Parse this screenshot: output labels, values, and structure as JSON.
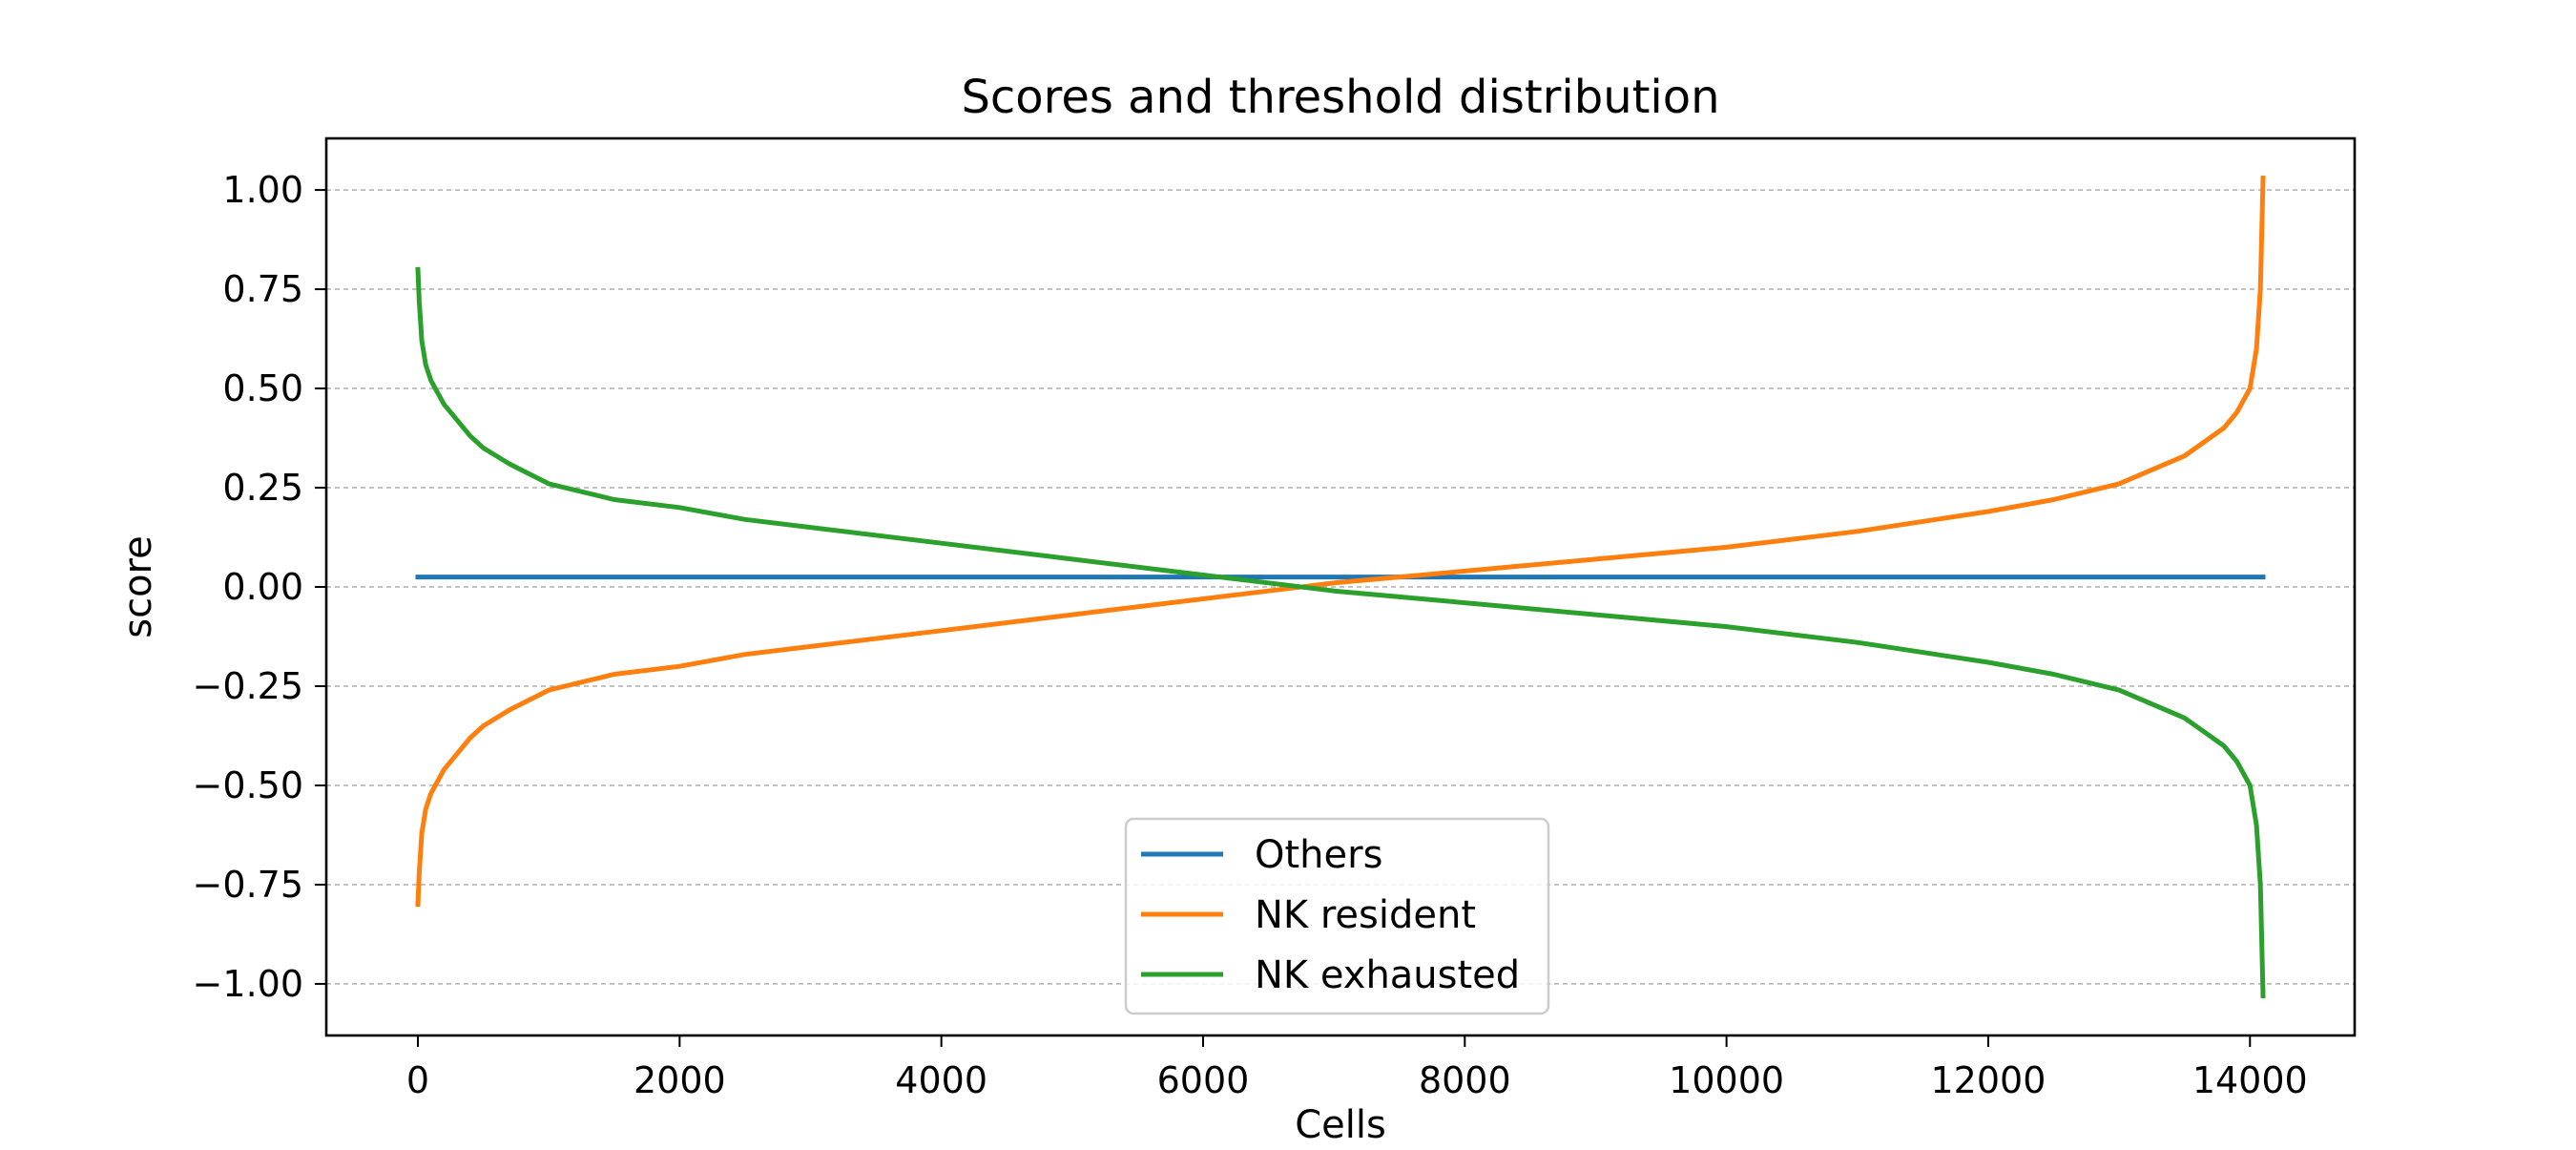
{
  "chart_data": {
    "type": "line",
    "title": "Scores and threshold distribution",
    "xlabel": "Cells",
    "ylabel": "score",
    "xlim": [
      -700,
      14800
    ],
    "ylim": [
      -1.13,
      1.13
    ],
    "x_ticks": [
      0,
      2000,
      4000,
      6000,
      8000,
      10000,
      12000,
      14000
    ],
    "x_tick_labels": [
      "0",
      "2000",
      "4000",
      "6000",
      "8000",
      "10000",
      "12000",
      "14000"
    ],
    "y_ticks": [
      1.0,
      0.75,
      0.5,
      0.25,
      0.0,
      -0.25,
      -0.5,
      -0.75,
      -1.0
    ],
    "y_tick_labels": [
      "1.00",
      "0.75",
      "0.50",
      "0.25",
      "0.00",
      "−0.25",
      "−0.50",
      "−0.75",
      "−1.00"
    ],
    "grid": "horizontal dashed",
    "legend_position": "lower-center",
    "series": [
      {
        "name": "Others",
        "color": "#1f77b4",
        "x": [
          0,
          14100
        ],
        "y": [
          0.025,
          0.025
        ]
      },
      {
        "name": "NK resident",
        "color": "#ff7f0e",
        "x": [
          0,
          10,
          30,
          60,
          100,
          200,
          300,
          400,
          500,
          700,
          1000,
          1500,
          2000,
          2500,
          3000,
          4000,
          5000,
          6000,
          6500,
          7000,
          7500,
          8000,
          9000,
          10000,
          11000,
          12000,
          12500,
          13000,
          13500,
          13800,
          13900,
          14000,
          14050,
          14080,
          14100
        ],
        "y": [
          -0.8,
          -0.72,
          -0.62,
          -0.56,
          -0.52,
          -0.46,
          -0.42,
          -0.38,
          -0.35,
          -0.31,
          -0.26,
          -0.22,
          -0.2,
          -0.17,
          -0.15,
          -0.11,
          -0.07,
          -0.03,
          -0.01,
          0.01,
          0.025,
          0.04,
          0.07,
          0.1,
          0.14,
          0.19,
          0.22,
          0.26,
          0.33,
          0.4,
          0.44,
          0.5,
          0.6,
          0.75,
          1.03
        ]
      },
      {
        "name": "NK exhausted",
        "color": "#2ca02c",
        "x": [
          0,
          10,
          30,
          60,
          100,
          200,
          300,
          400,
          500,
          700,
          1000,
          1500,
          2000,
          2500,
          3000,
          4000,
          5000,
          6000,
          6500,
          7000,
          7500,
          8000,
          9000,
          10000,
          11000,
          12000,
          12500,
          13000,
          13500,
          13800,
          13900,
          14000,
          14050,
          14080,
          14100
        ],
        "y": [
          0.8,
          0.72,
          0.62,
          0.56,
          0.52,
          0.46,
          0.42,
          0.38,
          0.35,
          0.31,
          0.26,
          0.22,
          0.2,
          0.17,
          0.15,
          0.11,
          0.07,
          0.03,
          0.01,
          -0.01,
          -0.025,
          -0.04,
          -0.07,
          -0.1,
          -0.14,
          -0.19,
          -0.22,
          -0.26,
          -0.33,
          -0.4,
          -0.44,
          -0.5,
          -0.6,
          -0.75,
          -1.03
        ]
      }
    ]
  }
}
